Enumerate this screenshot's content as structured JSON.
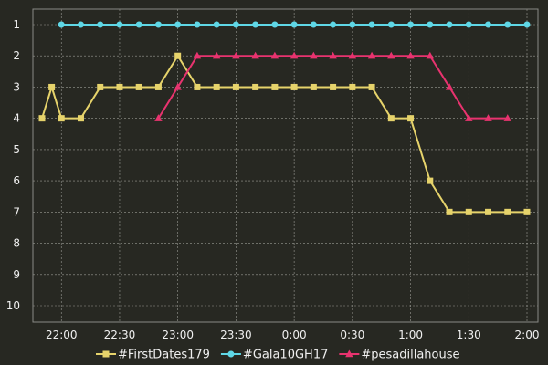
{
  "chart_data": {
    "type": "line",
    "title": "",
    "xlabel": "",
    "ylabel": "",
    "y_inverted": true,
    "ylim": [
      1,
      10
    ],
    "y_ticks": [
      1,
      2,
      3,
      4,
      5,
      6,
      7,
      8,
      9,
      10
    ],
    "x_time_range": [
      "21:50",
      "2:00"
    ],
    "x_ticks": [
      "22:00",
      "22:30",
      "23:00",
      "23:30",
      "0:00",
      "0:30",
      "1:00",
      "1:30",
      "2:00"
    ],
    "grid": true,
    "legend_position": "bottom",
    "background": "#272822",
    "series": [
      {
        "name": "#FirstDates179",
        "color": "#e6d36b",
        "marker": "square",
        "points": [
          [
            "21:50",
            4
          ],
          [
            "21:55",
            3
          ],
          [
            "22:00",
            4
          ],
          [
            "22:10",
            4
          ],
          [
            "22:20",
            3
          ],
          [
            "22:30",
            3
          ],
          [
            "22:40",
            3
          ],
          [
            "22:50",
            3
          ],
          [
            "23:00",
            2
          ],
          [
            "23:10",
            3
          ],
          [
            "23:20",
            3
          ],
          [
            "23:30",
            3
          ],
          [
            "23:40",
            3
          ],
          [
            "23:50",
            3
          ],
          [
            "0:00",
            3
          ],
          [
            "0:10",
            3
          ],
          [
            "0:20",
            3
          ],
          [
            "0:30",
            3
          ],
          [
            "0:40",
            3
          ],
          [
            "0:50",
            4
          ],
          [
            "1:00",
            4
          ],
          [
            "1:10",
            6
          ],
          [
            "1:20",
            7
          ],
          [
            "1:30",
            7
          ],
          [
            "1:40",
            7
          ],
          [
            "1:50",
            7
          ],
          [
            "2:00",
            7
          ]
        ]
      },
      {
        "name": "#Gala10GH17",
        "color": "#5fd7e6",
        "marker": "circle",
        "points": [
          [
            "22:00",
            1
          ],
          [
            "22:10",
            1
          ],
          [
            "22:20",
            1
          ],
          [
            "22:30",
            1
          ],
          [
            "22:40",
            1
          ],
          [
            "22:50",
            1
          ],
          [
            "23:00",
            1
          ],
          [
            "23:10",
            1
          ],
          [
            "23:20",
            1
          ],
          [
            "23:30",
            1
          ],
          [
            "23:40",
            1
          ],
          [
            "23:50",
            1
          ],
          [
            "0:00",
            1
          ],
          [
            "0:10",
            1
          ],
          [
            "0:20",
            1
          ],
          [
            "0:30",
            1
          ],
          [
            "0:40",
            1
          ],
          [
            "0:50",
            1
          ],
          [
            "1:00",
            1
          ],
          [
            "1:10",
            1
          ],
          [
            "1:20",
            1
          ],
          [
            "1:30",
            1
          ],
          [
            "1:40",
            1
          ],
          [
            "1:50",
            1
          ],
          [
            "2:00",
            1
          ]
        ]
      },
      {
        "name": "#pesadillahouse",
        "color": "#e8336f",
        "marker": "triangle",
        "points": [
          [
            "22:50",
            4
          ],
          [
            "23:00",
            3
          ],
          [
            "23:10",
            2
          ],
          [
            "23:20",
            2
          ],
          [
            "23:30",
            2
          ],
          [
            "23:40",
            2
          ],
          [
            "23:50",
            2
          ],
          [
            "0:00",
            2
          ],
          [
            "0:10",
            2
          ],
          [
            "0:20",
            2
          ],
          [
            "0:30",
            2
          ],
          [
            "0:40",
            2
          ],
          [
            "0:50",
            2
          ],
          [
            "1:00",
            2
          ],
          [
            "1:10",
            2
          ],
          [
            "1:20",
            3
          ],
          [
            "1:30",
            4
          ],
          [
            "1:40",
            4
          ],
          [
            "1:50",
            4
          ]
        ]
      }
    ]
  }
}
